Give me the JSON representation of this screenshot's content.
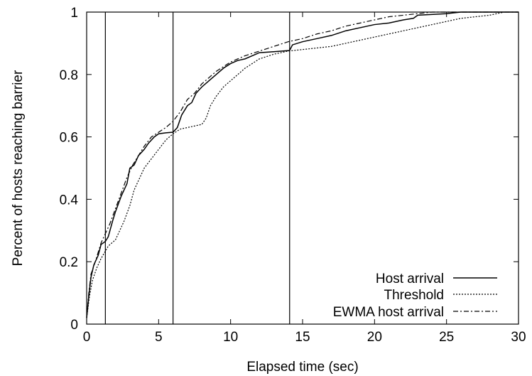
{
  "chart_data": {
    "type": "line",
    "title": "",
    "xlabel": "Elapsed time (sec)",
    "ylabel": "Percent of hosts reaching barrier",
    "xlim": [
      0,
      30
    ],
    "ylim": [
      0,
      1
    ],
    "xticks": [
      0,
      5,
      10,
      15,
      20,
      25,
      30
    ],
    "yticks": [
      0,
      0.2,
      0.4,
      0.6,
      0.8,
      1
    ],
    "xtick_labels": [
      "0",
      "5",
      "10",
      "15",
      "20",
      "25",
      "30"
    ],
    "ytick_labels": [
      "0",
      "0.2",
      "0.4",
      "0.6",
      "0.8",
      "1"
    ],
    "grid": false,
    "legend_position": "bottom-right",
    "vertical_lines": [
      1.3,
      6.0,
      14.1
    ],
    "series": [
      {
        "name": "Host arrival",
        "style": "solid",
        "color": "#000000",
        "points": [
          [
            0,
            0.02
          ],
          [
            0.15,
            0.09
          ],
          [
            0.3,
            0.15
          ],
          [
            0.5,
            0.19
          ],
          [
            0.8,
            0.22
          ],
          [
            1.0,
            0.255
          ],
          [
            1.3,
            0.265
          ],
          [
            1.5,
            0.28
          ],
          [
            1.8,
            0.33
          ],
          [
            2.0,
            0.36
          ],
          [
            2.4,
            0.41
          ],
          [
            2.8,
            0.45
          ],
          [
            3.0,
            0.5
          ],
          [
            3.3,
            0.51
          ],
          [
            3.6,
            0.54
          ],
          [
            4.0,
            0.56
          ],
          [
            4.3,
            0.58
          ],
          [
            4.7,
            0.6
          ],
          [
            5.0,
            0.61
          ],
          [
            5.5,
            0.613
          ],
          [
            6.0,
            0.615
          ],
          [
            6.3,
            0.63
          ],
          [
            6.6,
            0.67
          ],
          [
            7.0,
            0.7
          ],
          [
            7.3,
            0.71
          ],
          [
            7.6,
            0.74
          ],
          [
            8.0,
            0.76
          ],
          [
            8.5,
            0.78
          ],
          [
            9.0,
            0.8
          ],
          [
            9.5,
            0.82
          ],
          [
            10.0,
            0.835
          ],
          [
            10.5,
            0.845
          ],
          [
            11.0,
            0.85
          ],
          [
            12.0,
            0.87
          ],
          [
            13.0,
            0.873
          ],
          [
            14.1,
            0.877
          ],
          [
            14.3,
            0.895
          ],
          [
            15.0,
            0.905
          ],
          [
            16.0,
            0.915
          ],
          [
            17.0,
            0.925
          ],
          [
            18.0,
            0.94
          ],
          [
            19.0,
            0.95
          ],
          [
            20.0,
            0.96
          ],
          [
            21.0,
            0.965
          ],
          [
            22.0,
            0.975
          ],
          [
            22.7,
            0.98
          ],
          [
            23.0,
            0.99
          ],
          [
            25.0,
            0.995
          ],
          [
            26.0,
            1.0
          ],
          [
            30.0,
            1.0
          ]
        ]
      },
      {
        "name": "Threshold",
        "style": "dotted",
        "color": "#000000",
        "points": [
          [
            0,
            0.02
          ],
          [
            0.2,
            0.09
          ],
          [
            0.4,
            0.14
          ],
          [
            0.7,
            0.18
          ],
          [
            1.0,
            0.21
          ],
          [
            1.5,
            0.25
          ],
          [
            2.0,
            0.27
          ],
          [
            2.3,
            0.3
          ],
          [
            2.6,
            0.33
          ],
          [
            3.0,
            0.38
          ],
          [
            3.3,
            0.43
          ],
          [
            3.6,
            0.46
          ],
          [
            4.0,
            0.5
          ],
          [
            4.5,
            0.53
          ],
          [
            5.0,
            0.56
          ],
          [
            5.5,
            0.59
          ],
          [
            6.0,
            0.61
          ],
          [
            6.5,
            0.625
          ],
          [
            7.0,
            0.63
          ],
          [
            7.5,
            0.635
          ],
          [
            8.0,
            0.64
          ],
          [
            8.3,
            0.66
          ],
          [
            8.6,
            0.7
          ],
          [
            9.0,
            0.73
          ],
          [
            9.5,
            0.76
          ],
          [
            10.0,
            0.78
          ],
          [
            10.5,
            0.8
          ],
          [
            11.0,
            0.82
          ],
          [
            11.5,
            0.835
          ],
          [
            12.0,
            0.85
          ],
          [
            13.0,
            0.865
          ],
          [
            14.0,
            0.875
          ],
          [
            15.0,
            0.88
          ],
          [
            16.0,
            0.885
          ],
          [
            17.0,
            0.89
          ],
          [
            18.0,
            0.9
          ],
          [
            19.0,
            0.91
          ],
          [
            20.0,
            0.92
          ],
          [
            21.0,
            0.93
          ],
          [
            22.0,
            0.94
          ],
          [
            23.0,
            0.95
          ],
          [
            24.0,
            0.96
          ],
          [
            25.0,
            0.97
          ],
          [
            26.0,
            0.98
          ],
          [
            27.0,
            0.985
          ],
          [
            28.0,
            0.99
          ],
          [
            29.0,
            1.0
          ]
        ]
      },
      {
        "name": "EWMA host arrival",
        "style": "dashdot",
        "color": "#000000",
        "points": [
          [
            0,
            0.02
          ],
          [
            0.15,
            0.1
          ],
          [
            0.3,
            0.16
          ],
          [
            0.6,
            0.2
          ],
          [
            0.8,
            0.23
          ],
          [
            1.0,
            0.26
          ],
          [
            1.3,
            0.29
          ],
          [
            1.6,
            0.32
          ],
          [
            2.0,
            0.37
          ],
          [
            2.4,
            0.42
          ],
          [
            2.8,
            0.47
          ],
          [
            3.2,
            0.51
          ],
          [
            3.6,
            0.54
          ],
          [
            4.0,
            0.57
          ],
          [
            4.5,
            0.6
          ],
          [
            5.0,
            0.615
          ],
          [
            5.5,
            0.63
          ],
          [
            6.0,
            0.65
          ],
          [
            6.5,
            0.68
          ],
          [
            7.0,
            0.72
          ],
          [
            7.5,
            0.74
          ],
          [
            8.0,
            0.77
          ],
          [
            8.5,
            0.79
          ],
          [
            9.0,
            0.81
          ],
          [
            9.5,
            0.825
          ],
          [
            10.0,
            0.84
          ],
          [
            10.5,
            0.85
          ],
          [
            11.0,
            0.86
          ],
          [
            12.0,
            0.875
          ],
          [
            13.0,
            0.89
          ],
          [
            14.0,
            0.905
          ],
          [
            15.0,
            0.915
          ],
          [
            16.0,
            0.93
          ],
          [
            17.0,
            0.94
          ],
          [
            18.0,
            0.955
          ],
          [
            19.0,
            0.965
          ],
          [
            20.0,
            0.975
          ],
          [
            21.0,
            0.985
          ],
          [
            22.0,
            0.99
          ],
          [
            23.0,
            0.995
          ],
          [
            24.0,
            1.0
          ],
          [
            30.0,
            1.0
          ]
        ]
      }
    ]
  }
}
